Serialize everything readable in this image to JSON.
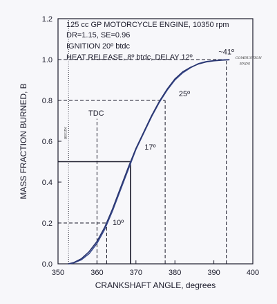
{
  "chart_data": {
    "type": "line",
    "title_lines": [
      "125 cc GP MOTORCYCLE ENGINE, 10350 rpm",
      "DR=1.15, SE=0.96",
      "IGNITION 20º btdc",
      "HEAT RELEASE, 8º btdc, DELAY 12º"
    ],
    "xlabel": "CRANKSHAFT ANGLE, degrees",
    "ylabel": "MASS FRACTION BURNED, B",
    "xlim": [
      350,
      400
    ],
    "ylim": [
      0.0,
      1.2
    ],
    "x_ticks": [
      350,
      360,
      370,
      380,
      390,
      400
    ],
    "y_ticks": [
      "0.0",
      "0.2",
      "0.4",
      "0.6",
      "0.8",
      "1.0",
      "1.2"
    ],
    "series": [
      {
        "x": [
          352.7,
          354,
          356,
          358,
          360,
          362,
          364,
          366,
          368,
          370,
          372,
          374,
          376,
          378,
          380,
          382,
          384,
          386,
          388,
          390,
          392,
          394
        ],
        "y": [
          0.0,
          0.004,
          0.02,
          0.05,
          0.1,
          0.17,
          0.26,
          0.36,
          0.46,
          0.56,
          0.64,
          0.72,
          0.79,
          0.85,
          0.9,
          0.935,
          0.96,
          0.98,
          0.99,
          0.995,
          0.998,
          1.0
        ]
      },
      {
        "x": [
          352.7,
          354,
          356,
          358,
          360,
          362,
          364,
          366,
          368,
          370,
          372,
          374,
          376,
          378,
          380,
          382,
          384,
          386,
          388,
          390,
          392,
          394
        ],
        "y": [
          0.0,
          0.006,
          0.025,
          0.06,
          0.11,
          0.18,
          0.27,
          0.37,
          0.47,
          0.565,
          0.645,
          0.725,
          0.795,
          0.855,
          0.905,
          0.94,
          0.962,
          0.978,
          0.988,
          0.994,
          0.997,
          0.999
        ]
      }
    ],
    "reference_lines": [
      {
        "x": 352.7,
        "ylim": [
          0.0,
          1.2
        ],
        "style": "dotted"
      },
      {
        "x": 360,
        "ylim": [
          0.0,
          0.71
        ],
        "style": "dashed"
      },
      {
        "x": 362.5,
        "ylim": [
          0.0,
          0.2
        ],
        "style": "dashed"
      },
      {
        "x": 368.6,
        "ylim": [
          0.0,
          0.5
        ],
        "style": "solid"
      },
      {
        "x": 377.5,
        "ylim": [
          0.0,
          0.8
        ],
        "style": "dashed"
      },
      {
        "x": 393.2,
        "ylim": [
          0.0,
          1.0
        ],
        "style": "dashed"
      },
      {
        "y": 0.2,
        "xlim": [
          350,
          362.5
        ],
        "style": "dashed"
      },
      {
        "y": 0.5,
        "xlim": [
          350,
          368.6
        ],
        "style": "solid"
      },
      {
        "y": 0.8,
        "xlim": [
          350,
          377.5
        ],
        "style": "dashed"
      },
      {
        "y": 1.0,
        "xlim": [
          350,
          393.2
        ],
        "style": "dashed"
      }
    ],
    "annotations": [
      {
        "text": "TDC",
        "x": 357.8,
        "y": 0.725
      },
      {
        "text": "10º",
        "x": 364.0,
        "y": 0.19
      },
      {
        "text": "17º",
        "x": 372.2,
        "y": 0.56
      },
      {
        "text": "25º",
        "x": 381.0,
        "y": 0.82
      },
      {
        "text": "~41º",
        "x": 391.2,
        "y": 1.025
      }
    ],
    "handwritten": [
      {
        "text": "COMBUSTION",
        "x": 395.5,
        "y": 1.003
      },
      {
        "text": "ENDS",
        "x": 396.6,
        "y": 0.975
      },
      {
        "text": "BEGIN",
        "x": 352.2,
        "y": 0.61
      }
    ],
    "grid": false
  }
}
